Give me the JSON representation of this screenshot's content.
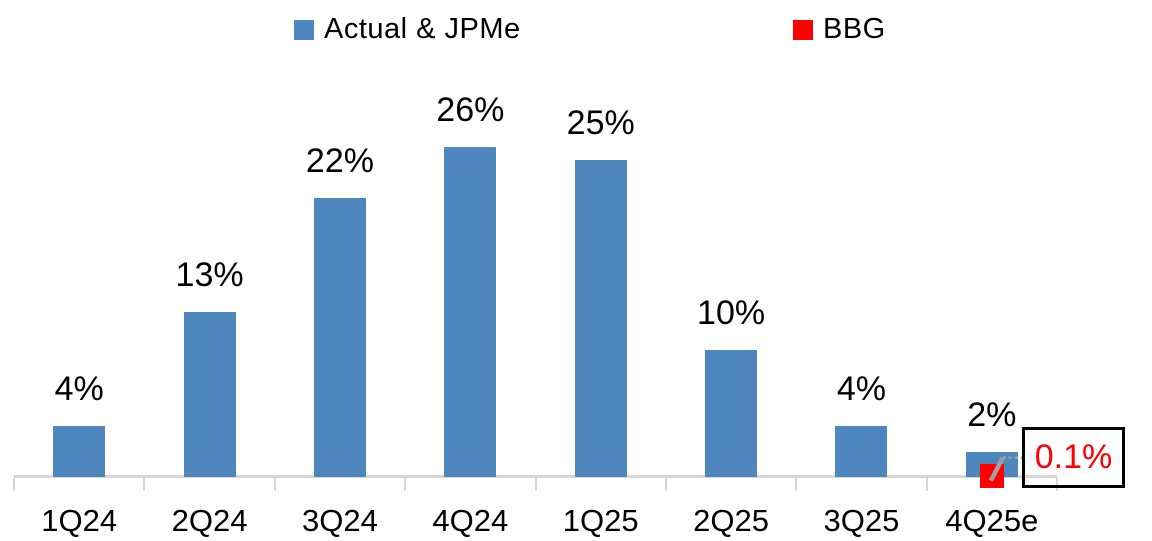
{
  "legend": {
    "items": [
      {
        "label": "Actual & JPMe",
        "color": "#4E86BE"
      },
      {
        "label": "BBG",
        "color": "#FF0000"
      }
    ]
  },
  "chart_data": {
    "type": "bar",
    "categories": [
      "1Q24",
      "2Q24",
      "3Q24",
      "4Q24",
      "1Q25",
      "2Q25",
      "3Q25",
      "4Q25e"
    ],
    "series": [
      {
        "name": "Actual & JPMe",
        "type": "bar",
        "color": "#4E86BE",
        "values": [
          4,
          13,
          22,
          26,
          25,
          10,
          4,
          2
        ],
        "labels": [
          "4%",
          "13%",
          "22%",
          "26%",
          "25%",
          "10%",
          "4%",
          "2%"
        ]
      },
      {
        "name": "BBG",
        "type": "point-marker",
        "marker": "square",
        "color": "#FF0000",
        "values": [
          null,
          null,
          null,
          null,
          null,
          null,
          null,
          0.1
        ],
        "labels": [
          null,
          null,
          null,
          null,
          null,
          null,
          null,
          "0.1%"
        ]
      }
    ],
    "ylim": [
      0,
      30
    ],
    "y_axis_visible": false,
    "grid": false,
    "legend_position": "top",
    "axis_color": "#D6D6D6",
    "leader_color": "#A0A0A0",
    "callout": {
      "text": "0.1%",
      "text_color": "#FF0000",
      "border_color": "#000000",
      "attached_to": {
        "series": "BBG",
        "category": "4Q25e"
      }
    }
  }
}
